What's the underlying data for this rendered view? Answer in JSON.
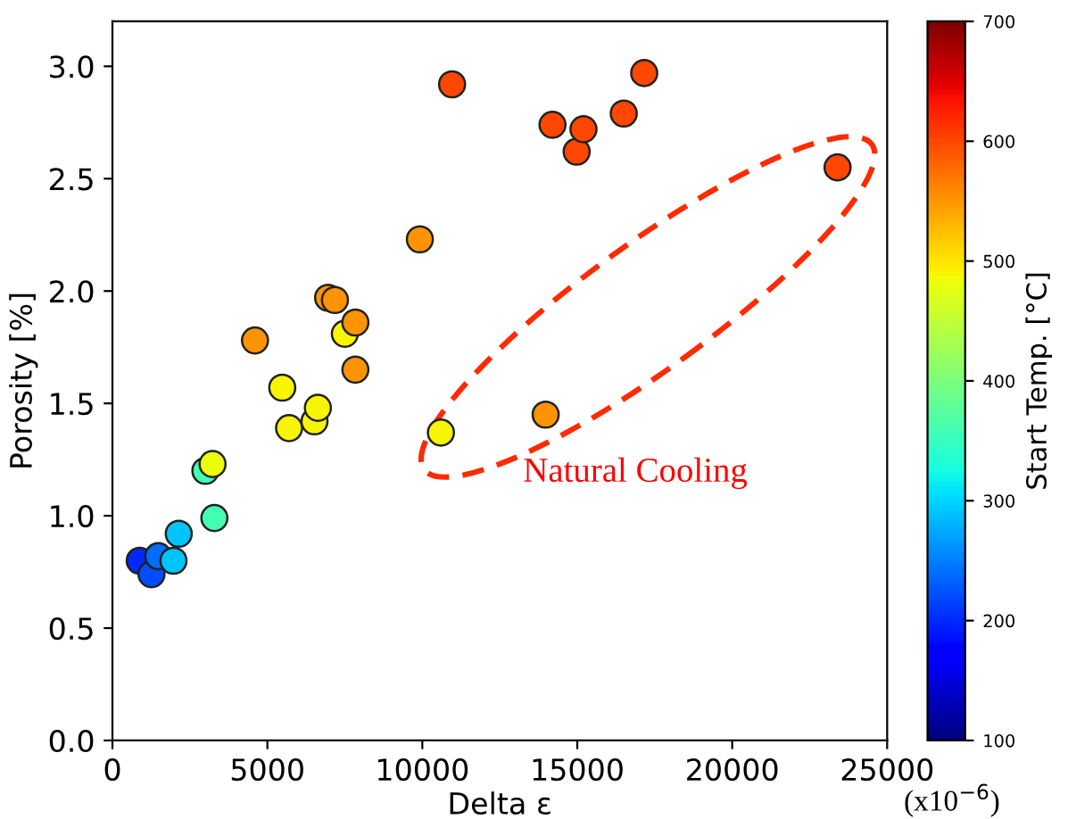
{
  "chart_data": {
    "type": "scatter",
    "xlabel": "Delta ε",
    "ylabel": "Porosity [%]",
    "clabel": "Start Temp. [°C]",
    "x": [
      880,
      1260,
      1480,
      1970,
      2140,
      3000,
      3230,
      3290,
      4600,
      5480,
      5700,
      6520,
      6630,
      6960,
      7180,
      7500,
      7840,
      7840,
      9920,
      10600,
      10960,
      13980,
      14200,
      14980,
      15200,
      16500,
      17160,
      23400
    ],
    "values": [
      0.8,
      0.74,
      0.82,
      0.8,
      0.92,
      1.2,
      1.23,
      0.99,
      1.78,
      1.57,
      1.39,
      1.42,
      1.48,
      1.97,
      1.96,
      1.81,
      1.86,
      1.65,
      2.23,
      1.37,
      2.92,
      1.45,
      2.74,
      2.62,
      2.72,
      2.79,
      2.97,
      2.55
    ],
    "cvalues": [
      200,
      220,
      240,
      290,
      290,
      360,
      480,
      360,
      550,
      490,
      490,
      490,
      490,
      550,
      550,
      490,
      550,
      550,
      550,
      490,
      600,
      550,
      600,
      600,
      600,
      600,
      600,
      600
    ],
    "clim": [
      100,
      700
    ],
    "cticks": [
      100,
      200,
      300,
      400,
      500,
      600,
      700
    ],
    "xlim": [
      0,
      25000
    ],
    "xticks": [
      0,
      5000,
      10000,
      15000,
      20000,
      25000
    ],
    "ylim": [
      0,
      3.2
    ],
    "yticks": [
      {
        "value": 0,
        "label": "0.0"
      },
      {
        "value": 0.5,
        "label": "0.5"
      },
      {
        "value": 1,
        "label": "1.0"
      },
      {
        "value": 1.5,
        "label": "1.5"
      },
      {
        "value": 2,
        "label": "2.0"
      },
      {
        "value": 2.5,
        "label": "2.5"
      },
      {
        "value": 3,
        "label": "3.0"
      }
    ],
    "marker": "circle",
    "grid": false,
    "annotations": [
      "Natural Cooling",
      "(x10$^{−6}$)"
    ]
  }
}
